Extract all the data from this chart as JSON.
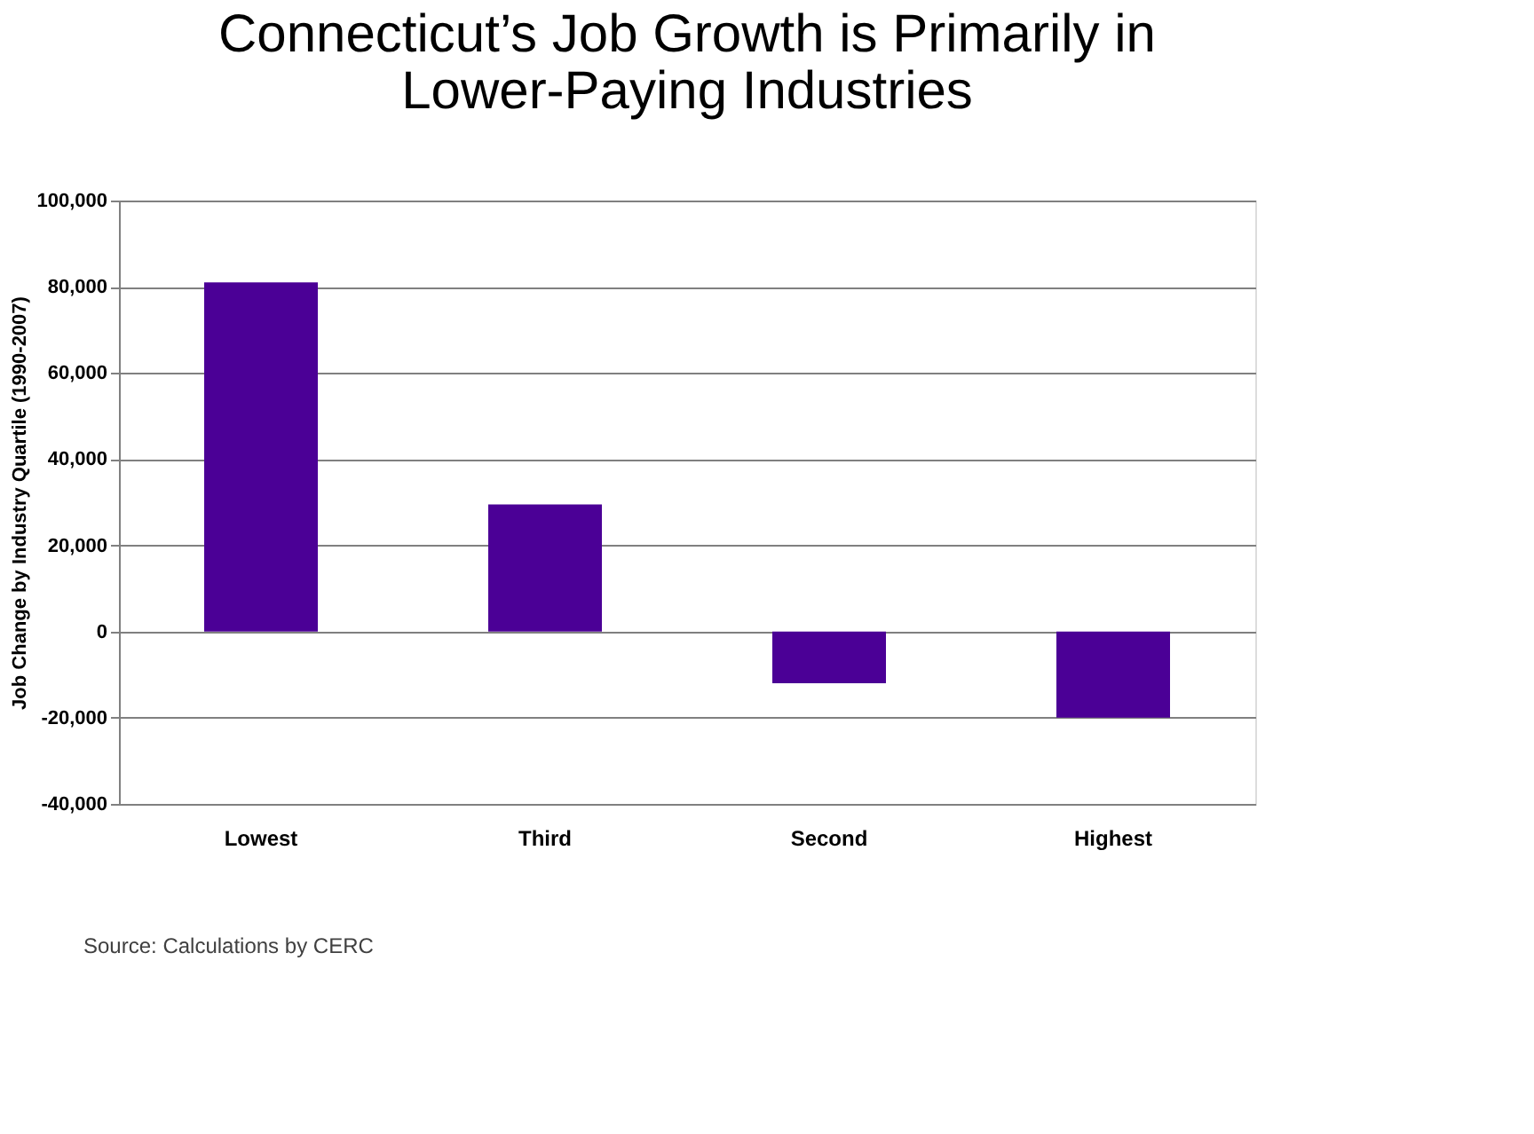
{
  "chart_data": {
    "type": "bar",
    "title": [
      "Connecticut’s Job Growth is Primarily in",
      "Lower-Paying Industries"
    ],
    "ylabel": "Job Change by Industry Quartile (1990-2007)",
    "categories": [
      "Lowest",
      "Third",
      "Second",
      "Highest"
    ],
    "values": [
      81000,
      29500,
      -12000,
      -20000
    ],
    "color": "#4b0096",
    "ylim": [
      -40000,
      100000
    ],
    "yticks": [
      {
        "value": -40000,
        "label": "-40,000"
      },
      {
        "value": -20000,
        "label": "-20,000"
      },
      0,
      {
        "value": 20000,
        "label": "20,000"
      },
      {
        "value": 40000,
        "label": "40,000"
      },
      {
        "value": 60000,
        "label": "60,000"
      },
      {
        "value": 80000,
        "label": "80,000"
      },
      {
        "value": 100000,
        "label": "100,000"
      }
    ],
    "grid": "y",
    "annotations": [
      "Source: Calculations by CERC"
    ]
  }
}
